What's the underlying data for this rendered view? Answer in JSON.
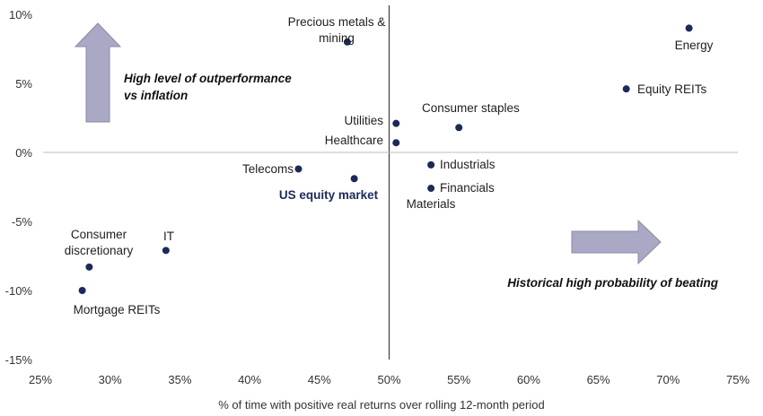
{
  "chart_data": {
    "type": "scatter",
    "xlabel": "% of time with positive real returns over rolling 12-month period",
    "xlim": [
      25,
      75
    ],
    "ylim": [
      -15,
      10
    ],
    "x_ticks": [
      25,
      30,
      35,
      40,
      45,
      50,
      55,
      60,
      65,
      70,
      75
    ],
    "y_ticks": [
      10,
      5,
      0,
      -5,
      -10,
      -15
    ],
    "x_tick_labels": [
      "25%",
      "30%",
      "35%",
      "40%",
      "45%",
      "50%",
      "55%",
      "60%",
      "65%",
      "70%",
      "75%"
    ],
    "y_tick_labels": [
      "10%",
      "5%",
      "0%",
      "-5%",
      "-10%",
      "-15%"
    ],
    "reference_lines": {
      "x": 50,
      "y": 0
    },
    "grid": false,
    "marker_color": "#1c2a5a",
    "arrow_color": "#a9a9c6",
    "points": [
      {
        "label": "Precious metals &\nmining",
        "x": 47.0,
        "y": 8.0
      },
      {
        "label": "Energy",
        "x": 71.5,
        "y": 9.0
      },
      {
        "label": "Equity REITs",
        "x": 67.0,
        "y": 4.6
      },
      {
        "label": "Consumer staples",
        "x": 55.0,
        "y": 1.8
      },
      {
        "label": "Utilities",
        "x": 50.5,
        "y": 2.1
      },
      {
        "label": "Healthcare",
        "x": 50.5,
        "y": 0.7
      },
      {
        "label": "Telecoms",
        "x": 43.5,
        "y": -1.2
      },
      {
        "label": "US equity market",
        "x": 47.5,
        "y": -1.9,
        "highlight": true
      },
      {
        "label": "Industrials",
        "x": 53.0,
        "y": -0.9
      },
      {
        "label": "Financials",
        "x": 53.0,
        "y": -2.6
      },
      {
        "label": "Materials",
        "x": 53.0,
        "y": -2.6
      },
      {
        "label": "IT",
        "x": 34.0,
        "y": -7.1
      },
      {
        "label": "Consumer\ndiscretionary",
        "x": 28.5,
        "y": -8.3
      },
      {
        "label": "Mortgage REITs",
        "x": 28.0,
        "y": -10.0
      }
    ],
    "annotations": [
      {
        "text": "High level of outperformance\nvs inflation",
        "arrow": "up"
      },
      {
        "text": "Historical high probability of beating",
        "arrow": "right"
      }
    ]
  }
}
